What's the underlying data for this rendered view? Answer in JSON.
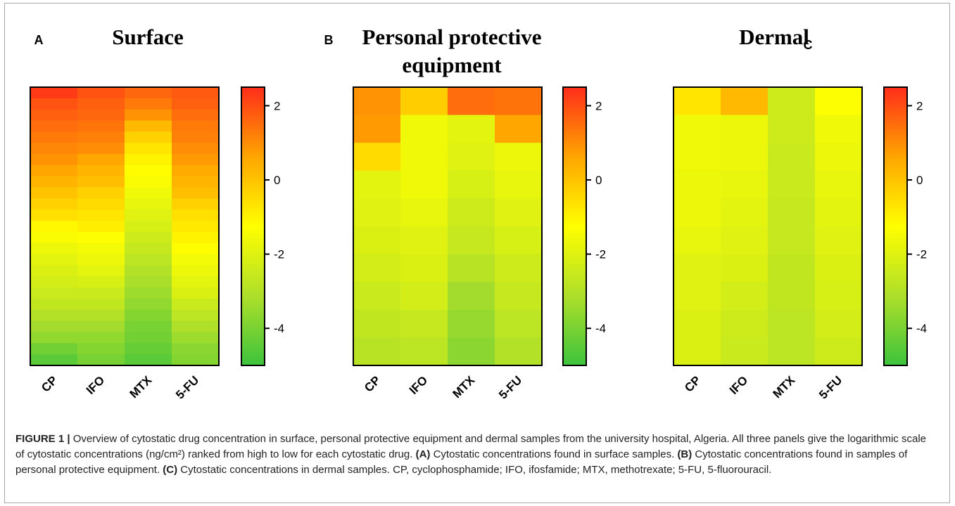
{
  "colors": {
    "scale": [
      "#3dc33d",
      "#aedf2a",
      "#ffff00",
      "#ffa500",
      "#ff2d1a"
    ],
    "border": "#000000"
  },
  "chart_data": [
    {
      "type": "heatmap",
      "panel_label": "A",
      "title_lines": [
        "Surface"
      ],
      "categories": [
        "CP",
        "IFO",
        "MTX",
        "5-FU"
      ],
      "colorbar": {
        "min": -5,
        "max": 2.5,
        "ticks": [
          "2",
          "0",
          "-2",
          "-4"
        ],
        "tick_values": [
          2,
          0,
          -2,
          -4
        ]
      },
      "columns": [
        [
          2.3,
          1.9,
          1.7,
          1.5,
          1.3,
          1.1,
          0.9,
          0.6,
          0.3,
          0.0,
          -0.3,
          -0.6,
          -1.1,
          -1.4,
          -1.7,
          -1.9,
          -2.1,
          -2.3,
          -2.5,
          -2.7,
          -3.0,
          -3.3,
          -3.6,
          -4.1,
          -4.5
        ],
        [
          1.9,
          1.7,
          1.6,
          1.4,
          1.2,
          1.0,
          0.6,
          0.3,
          0.1,
          -0.3,
          -0.5,
          -0.7,
          -0.9,
          -1.3,
          -1.5,
          -1.7,
          -1.9,
          -2.2,
          -2.5,
          -2.7,
          -3.0,
          -3.3,
          -3.6,
          -3.8,
          -4.0
        ],
        [
          1.6,
          1.3,
          0.9,
          0.2,
          -0.3,
          -0.7,
          -1.0,
          -1.2,
          -1.4,
          -1.6,
          -1.8,
          -2.0,
          -2.2,
          -2.4,
          -2.6,
          -2.8,
          -3.0,
          -3.2,
          -3.4,
          -3.6,
          -3.8,
          -4.0,
          -4.1,
          -4.3,
          -4.5
        ],
        [
          1.8,
          1.7,
          1.5,
          1.3,
          1.2,
          1.0,
          0.8,
          0.5,
          0.3,
          0.1,
          -0.3,
          -0.6,
          -0.8,
          -1.0,
          -1.2,
          -1.5,
          -1.7,
          -1.9,
          -2.1,
          -2.5,
          -2.8,
          -3.1,
          -3.4,
          -3.7,
          -3.8
        ]
      ]
    },
    {
      "type": "heatmap",
      "panel_label": "B",
      "title_lines": [
        "Personal protective",
        "equipment"
      ],
      "categories": [
        "CP",
        "IFO",
        "MTX",
        "5-FU"
      ],
      "colorbar": {
        "min": -5,
        "max": 2.5,
        "ticks": [
          "2",
          "0",
          "-2",
          "-4"
        ],
        "tick_values": [
          2,
          0,
          -2,
          -4
        ]
      },
      "columns": [
        [
          0.9,
          0.8,
          -0.5,
          -1.9,
          -2.0,
          -2.1,
          -2.3,
          -2.5,
          -2.7,
          -2.9
        ],
        [
          -0.2,
          -1.6,
          -1.6,
          -1.6,
          -1.8,
          -2.0,
          -2.1,
          -2.3,
          -2.6,
          -2.8
        ],
        [
          1.5,
          -1.9,
          -2.0,
          -2.2,
          -2.4,
          -2.6,
          -2.9,
          -3.3,
          -3.5,
          -3.7
        ],
        [
          1.4,
          0.6,
          -1.7,
          -1.8,
          -2.0,
          -2.2,
          -2.4,
          -2.6,
          -2.8,
          -3.0
        ]
      ]
    },
    {
      "type": "heatmap",
      "panel_label": "C",
      "title_lines": [
        "Dermal"
      ],
      "categories": [
        "CP",
        "IFO",
        "MTX",
        "5-FU"
      ],
      "colorbar": {
        "min": -5,
        "max": 2.5,
        "ticks": [
          "2",
          "0",
          "-2",
          "-4"
        ],
        "tick_values": [
          2,
          0,
          -2,
          -4
        ]
      },
      "columns": [
        [
          -0.7,
          -1.6,
          -1.6,
          -1.7,
          -1.7,
          -1.8,
          -2.0,
          -2.0,
          -2.1,
          -2.1
        ],
        [
          0.2,
          -1.7,
          -1.7,
          -1.8,
          -1.9,
          -2.0,
          -2.1,
          -2.3,
          -2.4,
          -2.5
        ],
        [
          -2.4,
          -2.4,
          -2.5,
          -2.5,
          -2.6,
          -2.6,
          -2.7,
          -2.7,
          -2.8,
          -2.8
        ],
        [
          -1.3,
          -1.6,
          -1.7,
          -1.8,
          -1.9,
          -2.0,
          -2.1,
          -2.2,
          -2.3,
          -2.4
        ]
      ]
    }
  ],
  "caption": {
    "figure_label": "FIGURE 1 |",
    "intro": " Overview of cytostatic drug concentration in surface, personal protective equipment and dermal samples from the university hospital, Algeria. All three panels give the logarithmic scale of cytostatic concentrations (ng/cm²) ranked from high to low for each cytostatic drug. ",
    "a_label": "(A)",
    "a_text": " Cytostatic concentrations found in surface samples. ",
    "b_label": "(B)",
    "b_text": " Cytostatic concentrations found in samples of personal protective equipment. ",
    "c_label": "(C)",
    "c_text": " Cytostatic concentrations in dermal samples. CP, cyclophosphamide; IFO, ifosfamide; MTX, methotrexate; 5-FU, 5-fluorouracil."
  }
}
